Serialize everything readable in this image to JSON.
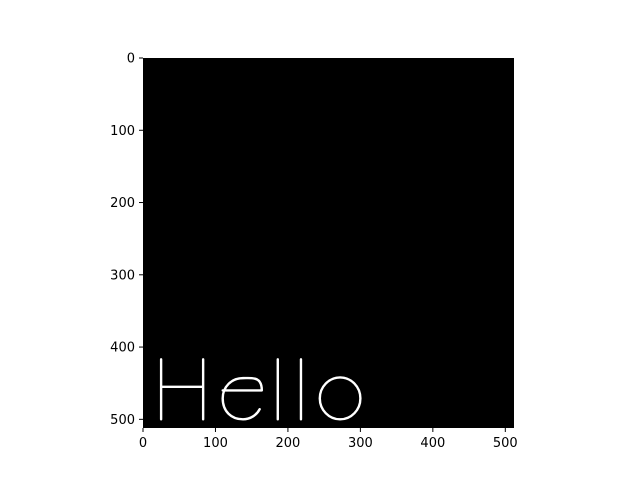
{
  "chart_data": {
    "type": "image",
    "title": "",
    "xlabel": "",
    "ylabel": "",
    "image_size": [
      512,
      512
    ],
    "xlim": [
      0,
      512
    ],
    "ylim": [
      512,
      0
    ],
    "x_ticks": [
      0,
      100,
      200,
      300,
      400,
      500
    ],
    "y_ticks": [
      0,
      100,
      200,
      300,
      400,
      500
    ],
    "background_color": "#000000",
    "text_color": "#ffffff",
    "rendered_text": "Hello",
    "grid": false
  }
}
